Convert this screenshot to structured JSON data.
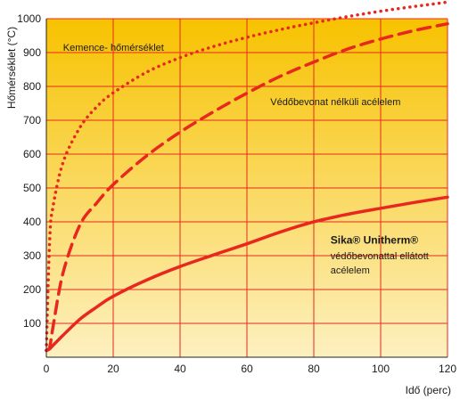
{
  "chart_data": {
    "type": "line",
    "xlabel": "Idő (perc)",
    "ylabel": "Hőmérséklet (°C)",
    "xlim": [
      0,
      120
    ],
    "ylim": [
      0,
      1000
    ],
    "x_ticks": [
      0,
      20,
      40,
      60,
      80,
      100,
      120
    ],
    "y_ticks": [
      100,
      200,
      300,
      400,
      500,
      600,
      700,
      800,
      900,
      1000
    ],
    "grid": true,
    "colors": {
      "background_top": "#f7c200",
      "background_bottom": "#fdf0c0",
      "line": "#e8281e",
      "grid": "#e8281e"
    },
    "series": [
      {
        "name": "Kemence- hőmérséklet",
        "style": "dotted",
        "x": [
          0,
          1,
          2,
          5,
          10,
          15,
          20,
          30,
          40,
          50,
          60,
          70,
          80,
          90,
          100,
          110,
          120
        ],
        "values": [
          20,
          349,
          445,
          576,
          678,
          739,
          781,
          842,
          885,
          918,
          945,
          968,
          988,
          1006,
          1022,
          1036,
          1049
        ]
      },
      {
        "name": "Védőbevonat nélküli acélelem",
        "style": "dashed",
        "x": [
          0,
          1,
          2,
          5,
          10,
          15,
          20,
          30,
          40,
          50,
          60,
          70,
          80,
          90,
          100,
          110,
          120
        ],
        "values": [
          20,
          30,
          90,
          250,
          390,
          455,
          510,
          595,
          665,
          725,
          780,
          830,
          872,
          910,
          940,
          965,
          985
        ]
      },
      {
        "name": "Sika® Unitherm® védőbevonattal ellátott acélelem",
        "style": "solid",
        "x": [
          0,
          1,
          2,
          5,
          10,
          15,
          20,
          30,
          40,
          50,
          60,
          70,
          80,
          90,
          100,
          110,
          120
        ],
        "values": [
          20,
          25,
          35,
          65,
          112,
          148,
          180,
          228,
          268,
          302,
          335,
          370,
          400,
          422,
          440,
          457,
          473
        ]
      }
    ],
    "annotations": [
      {
        "text": "Kemence- hőmérséklet",
        "x": 5,
        "y": 905,
        "bold": false
      },
      {
        "text": "Védőbevonat nélküli acélelem",
        "x": 67,
        "y": 745,
        "bold": false
      },
      {
        "text": "Sika® Unitherm®",
        "x": 85,
        "y": 335,
        "bold": true
      },
      {
        "text": "védőbevonattal ellátott",
        "x": 85,
        "y": 290,
        "bold": false
      },
      {
        "text": "acélelem",
        "x": 85,
        "y": 248,
        "bold": false
      }
    ]
  }
}
